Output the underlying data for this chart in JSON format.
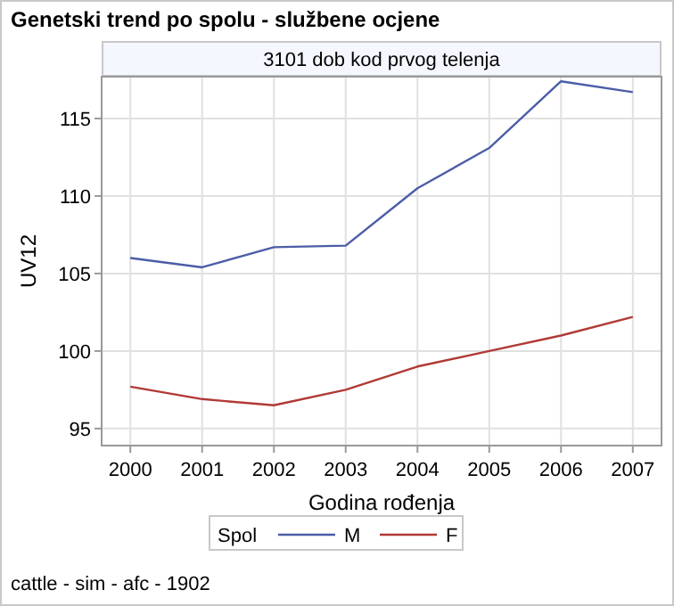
{
  "chart_data": {
    "type": "line",
    "title": "Genetski trend po spolu - službene ocjene",
    "subtitle": "3101 dob kod prvog telenja",
    "xlabel": "Godina rođenja",
    "ylabel": "UV12",
    "legend_title": "Spol",
    "annotations": [
      "cattle - sim - afc - 1902"
    ],
    "x": [
      2000,
      2001,
      2002,
      2003,
      2004,
      2005,
      2006,
      2007
    ],
    "series": [
      {
        "name": "M",
        "color": "#4b5da8",
        "values": [
          106.0,
          105.4,
          106.7,
          106.8,
          110.5,
          113.1,
          117.4,
          116.7
        ]
      },
      {
        "name": "F",
        "color": "#b03a36",
        "values": [
          97.7,
          96.9,
          96.5,
          97.5,
          99.0,
          100.0,
          101.0,
          102.2
        ]
      }
    ],
    "xlim": [
      1999.6,
      2007.4
    ],
    "xticks": [
      2000,
      2001,
      2002,
      2003,
      2004,
      2005,
      2006,
      2007
    ],
    "ylim": [
      93.9,
      117.7
    ],
    "yticks": [
      95,
      100,
      105,
      110,
      115
    ],
    "grid": true,
    "legend": "bottom",
    "marker": "none",
    "line_style": "solid"
  }
}
